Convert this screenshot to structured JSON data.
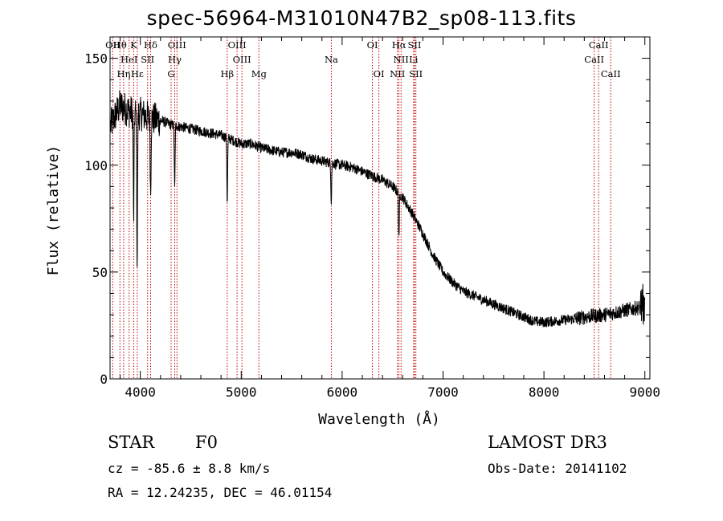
{
  "title": "spec-56964-M31010N47B2_sp08-113.fits",
  "chart_data": {
    "type": "line",
    "xlabel": "Wavelength (Å)",
    "ylabel": "Flux (relative)",
    "xlim": [
      3700,
      9050
    ],
    "ylim": [
      0,
      160
    ],
    "xticks": [
      4000,
      5000,
      6000,
      7000,
      8000,
      9000
    ],
    "yticks": [
      0,
      50,
      100,
      150
    ],
    "continuum": [
      [
        3700,
        118
      ],
      [
        3800,
        128
      ],
      [
        3900,
        125
      ],
      [
        4000,
        124
      ],
      [
        4100,
        122
      ],
      [
        4200,
        121
      ],
      [
        4300,
        119
      ],
      [
        4400,
        118
      ],
      [
        4500,
        117
      ],
      [
        4600,
        116
      ],
      [
        4700,
        115
      ],
      [
        4800,
        114
      ],
      [
        4900,
        112
      ],
      [
        5000,
        110
      ],
      [
        5100,
        110
      ],
      [
        5200,
        108
      ],
      [
        5300,
        107
      ],
      [
        5400,
        106
      ],
      [
        5500,
        106
      ],
      [
        5600,
        105
      ],
      [
        5700,
        103
      ],
      [
        5800,
        102
      ],
      [
        5900,
        101
      ],
      [
        6000,
        100
      ],
      [
        6100,
        99
      ],
      [
        6200,
        97
      ],
      [
        6300,
        95
      ],
      [
        6400,
        93
      ],
      [
        6500,
        90
      ],
      [
        6600,
        85
      ],
      [
        6700,
        77
      ],
      [
        6800,
        68
      ],
      [
        6900,
        58
      ],
      [
        7000,
        50
      ],
      [
        7100,
        45
      ],
      [
        7200,
        41
      ],
      [
        7300,
        39
      ],
      [
        7400,
        37
      ],
      [
        7500,
        35
      ],
      [
        7600,
        33
      ],
      [
        7700,
        31
      ],
      [
        7800,
        29
      ],
      [
        7900,
        27
      ],
      [
        8000,
        26.5
      ],
      [
        8100,
        27
      ],
      [
        8200,
        27.5
      ],
      [
        8300,
        28
      ],
      [
        8400,
        29
      ],
      [
        8500,
        29.5
      ],
      [
        8600,
        30
      ],
      [
        8700,
        31
      ],
      [
        8800,
        32
      ],
      [
        8900,
        33
      ],
      [
        9000,
        34
      ]
    ],
    "absorption_features": [
      {
        "wavelength": 3933.7,
        "depth": 50,
        "label": "K"
      },
      {
        "wavelength": 3968.5,
        "depth": 70,
        "label": "H"
      },
      {
        "wavelength": 4101.7,
        "depth": 35,
        "label": "Hδ"
      },
      {
        "wavelength": 4340.5,
        "depth": 30,
        "label": "Hγ"
      },
      {
        "wavelength": 4861.3,
        "depth": 30,
        "label": "Hβ"
      },
      {
        "wavelength": 5892,
        "depth": 18,
        "label": "Na"
      },
      {
        "wavelength": 6562.8,
        "depth": 20,
        "label": "Hα"
      }
    ],
    "annotations": [
      {
        "label": "Hθ",
        "wavelength": 3798,
        "row": 1
      },
      {
        "label": "OII",
        "wavelength": 3727,
        "row": 1
      },
      {
        "label": "Hη",
        "wavelength": 3835,
        "row": 3
      },
      {
        "label": "K",
        "wavelength": 3934,
        "row": 1
      },
      {
        "label": "HeI",
        "wavelength": 3889,
        "row": 2
      },
      {
        "label": "SII",
        "wavelength": 4072,
        "row": 2
      },
      {
        "label": "Hε",
        "wavelength": 3970,
        "row": 3
      },
      {
        "label": "Hδ",
        "wavelength": 4102,
        "row": 1
      },
      {
        "label": "OIII",
        "wavelength": 4363,
        "row": 1
      },
      {
        "label": "Hγ",
        "wavelength": 4341,
        "row": 2
      },
      {
        "label": "G",
        "wavelength": 4305,
        "row": 3
      },
      {
        "label": "OIII",
        "wavelength": 4959,
        "row": 1
      },
      {
        "label": "OIII",
        "wavelength": 5007,
        "row": 2
      },
      {
        "label": "Hβ",
        "wavelength": 4861,
        "row": 3
      },
      {
        "label": "Mg",
        "wavelength": 5175,
        "row": 3
      },
      {
        "label": "Na",
        "wavelength": 5893,
        "row": 2
      },
      {
        "label": "OI",
        "wavelength": 6300,
        "row": 1
      },
      {
        "label": "OI",
        "wavelength": 6364,
        "row": 3
      },
      {
        "label": "Hα",
        "wavelength": 6563,
        "row": 1
      },
      {
        "label": "SII",
        "wavelength": 6717,
        "row": 1
      },
      {
        "label": "NII",
        "wavelength": 6584,
        "row": 2
      },
      {
        "label": "Li",
        "wavelength": 6708,
        "row": 2
      },
      {
        "label": "NII",
        "wavelength": 6548,
        "row": 3
      },
      {
        "label": "SII",
        "wavelength": 6731,
        "row": 3
      },
      {
        "label": "CaII",
        "wavelength": 8542,
        "row": 1
      },
      {
        "label": "CaII",
        "wavelength": 8498,
        "row": 2
      },
      {
        "label": "CaII",
        "wavelength": 8662,
        "row": 3
      }
    ],
    "marker_lines": [
      3727,
      3798,
      3835,
      3889,
      3934,
      3970,
      4072,
      4102,
      4305,
      4341,
      4363,
      4861,
      4959,
      5007,
      5175,
      5893,
      6300,
      6364,
      6548,
      6563,
      6584,
      6708,
      6717,
      6731,
      8498,
      8542,
      8662
    ]
  },
  "info": {
    "object_class": "STAR",
    "subclass": "F0",
    "survey": "LAMOST DR3",
    "redshift": "cz = -85.6 ± 8.8 km/s",
    "obs_date": "Obs-Date: 20141102",
    "coords": "RA =  12.24235, DEC =  46.01154"
  },
  "colors": {
    "spectrum": "#000000",
    "marker": "#c00000"
  }
}
